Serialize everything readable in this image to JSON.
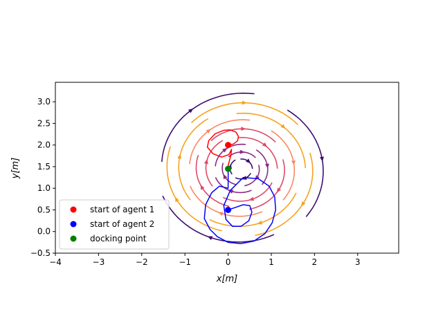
{
  "chart_data": {
    "type": "line",
    "title": "",
    "xlabel": "x[m]",
    "ylabel": "y[m]",
    "xlim": [
      -4,
      3.95
    ],
    "ylim": [
      -0.5,
      3.45
    ],
    "xticks": [
      -4,
      -3,
      -2,
      -1,
      0,
      1,
      2,
      3
    ],
    "yticks": [
      -0.5,
      0.0,
      0.5,
      1.0,
      1.5,
      2.0,
      2.5,
      3.0
    ],
    "xtick_labels": [
      "−4",
      "−3",
      "−2",
      "−1",
      "0",
      "1",
      "2",
      "3"
    ],
    "ytick_labels": [
      "−0.5",
      "0.0",
      "0.5",
      "1.0",
      "1.5",
      "2.0",
      "2.5",
      "3.0"
    ],
    "grid": false,
    "legend_position": "lower-left",
    "vector_field": {
      "center": [
        0.3,
        1.45
      ],
      "colormap": [
        "#3b0f70",
        "#8c2981",
        "#de4968",
        "#fb8761",
        "#f7a21d"
      ]
    },
    "series": [
      {
        "name": "start of agent 1",
        "kind": "point",
        "color": "#ff0000",
        "x": [
          0.0
        ],
        "y": [
          2.0
        ]
      },
      {
        "name": "start of agent 2",
        "kind": "point",
        "color": "#0000ff",
        "x": [
          0.0
        ],
        "y": [
          0.5
        ]
      },
      {
        "name": "docking point",
        "kind": "point",
        "color": "#008000",
        "x": [
          0.0
        ],
        "y": [
          1.45
        ]
      },
      {
        "kind": "trajectory",
        "color": "#ff0000",
        "x": [
          0.0,
          0.12,
          0.22,
          0.24,
          0.18,
          0.05,
          -0.1,
          -0.3,
          -0.45,
          -0.48,
          -0.35,
          -0.15,
          0.02,
          0.08,
          0.06,
          0.02,
          0.0,
          0.0,
          0.0
        ],
        "y": [
          2.0,
          2.02,
          2.1,
          2.2,
          2.3,
          2.35,
          2.34,
          2.26,
          2.1,
          1.95,
          1.8,
          1.72,
          1.78,
          1.9,
          1.75,
          1.6,
          1.52,
          1.48,
          1.45
        ]
      },
      {
        "kind": "trajectory",
        "color": "#0000ff",
        "x": [
          0.0,
          0.15,
          0.35,
          0.5,
          0.55,
          0.48,
          0.3,
          0.1,
          -0.05,
          -0.1,
          0.05,
          0.35,
          0.7,
          0.95,
          1.08,
          1.1,
          1.02,
          0.85,
          0.6,
          0.3,
          0.0,
          -0.25,
          -0.42,
          -0.55,
          -0.52,
          -0.38,
          -0.2,
          0.0,
          0.0,
          0.0,
          0.0,
          0.0
        ],
        "y": [
          0.5,
          0.55,
          0.62,
          0.6,
          0.45,
          0.25,
          0.12,
          0.12,
          0.28,
          0.6,
          0.95,
          1.25,
          1.22,
          1.05,
          0.8,
          0.5,
          0.2,
          -0.05,
          -0.22,
          -0.28,
          -0.25,
          -0.12,
          0.05,
          0.3,
          0.62,
          0.9,
          1.05,
          1.0,
          1.15,
          1.3,
          1.4,
          1.45
        ]
      }
    ]
  }
}
